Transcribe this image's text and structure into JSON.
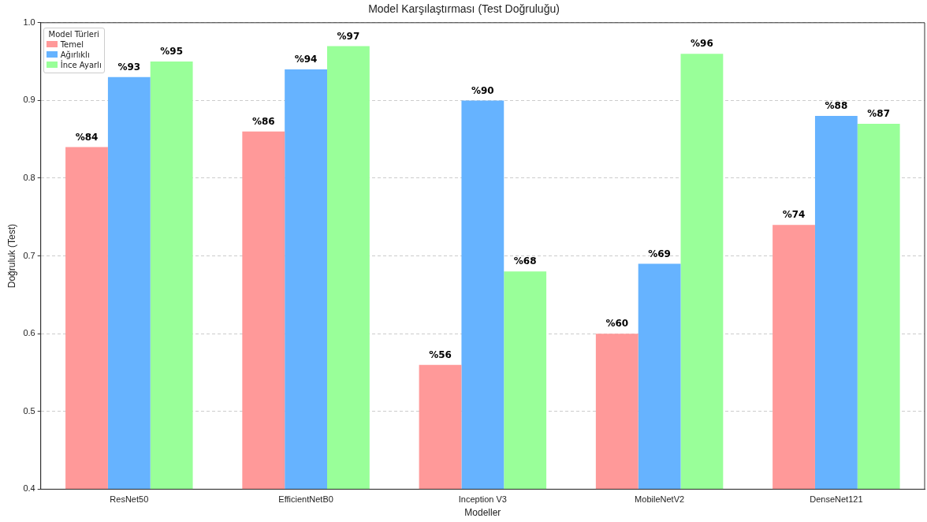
{
  "chart_data": {
    "type": "bar",
    "title": "Model Karşılaştırması (Test Doğruluğu)",
    "xlabel": "Modeller",
    "ylabel": "Doğruluk (Test)",
    "legend_title": "Model Türleri",
    "categories": [
      "ResNet50",
      "EfficientNetB0",
      "Inception V3",
      "MobileNetV2",
      "DenseNet121"
    ],
    "series": [
      {
        "name": "Temel",
        "color": "#ff9999",
        "values": [
          0.84,
          0.86,
          0.56,
          0.6,
          0.74
        ],
        "value_labels": [
          "%84",
          "%86",
          "%56",
          "%60",
          "%74"
        ]
      },
      {
        "name": "Ağırlıklı",
        "color": "#66b3ff",
        "values": [
          0.93,
          0.94,
          0.9,
          0.69,
          0.88
        ],
        "value_labels": [
          "%93",
          "%94",
          "%90",
          "%69",
          "%88"
        ]
      },
      {
        "name": "İnce Ayarlı",
        "color": "#99ff99",
        "values": [
          0.95,
          0.97,
          0.68,
          0.96,
          0.87
        ],
        "value_labels": [
          "%95",
          "%97",
          "%68",
          "%96",
          "%87"
        ]
      }
    ],
    "ylim": [
      0.4,
      1.0
    ],
    "yticks": [
      0.4,
      0.5,
      0.6,
      0.7,
      0.8,
      0.9,
      {
        "value": 1,
        "label": "1.0"
      }
    ],
    "grid": "y",
    "legend": "top left"
  }
}
